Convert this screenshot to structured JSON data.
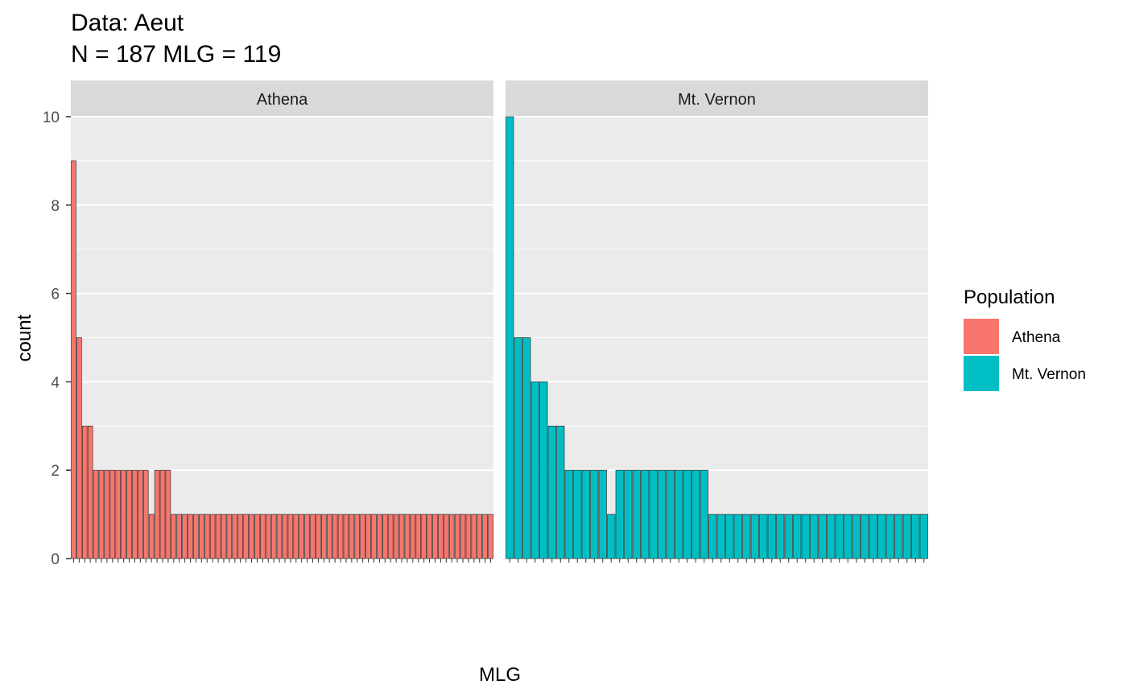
{
  "chart_data": {
    "type": "bar",
    "title": "Data: Aeut",
    "subtitle": "N = 187 MLG = 119",
    "xlabel": "MLG",
    "ylabel": "count",
    "ylim": [
      0,
      10
    ],
    "yticks": [
      "0",
      "2",
      "4",
      "6",
      "8",
      "10"
    ],
    "grid": true,
    "legend": {
      "title": "Population",
      "position": "right",
      "entries": [
        {
          "name": "Athena",
          "color": "#F8766D"
        },
        {
          "name": "Mt. Vernon",
          "color": "#00BFC4"
        }
      ]
    },
    "facets": [
      {
        "name": "Athena",
        "color": "#F8766D",
        "values": [
          9,
          5,
          3,
          3,
          2,
          2,
          2,
          2,
          2,
          2,
          2,
          2,
          2,
          2,
          1,
          2,
          2,
          2,
          1,
          1,
          1,
          1,
          1,
          1,
          1,
          1,
          1,
          1,
          1,
          1,
          1,
          1,
          1,
          1,
          1,
          1,
          1,
          1,
          1,
          1,
          1,
          1,
          1,
          1,
          1,
          1,
          1,
          1,
          1,
          1,
          1,
          1,
          1,
          1,
          1,
          1,
          1,
          1,
          1,
          1,
          1,
          1,
          1,
          1,
          1,
          1,
          1,
          1,
          1,
          1,
          1,
          1,
          1,
          1,
          1,
          1
        ]
      },
      {
        "name": "Mt. Vernon",
        "color": "#00BFC4",
        "values": [
          10,
          5,
          5,
          4,
          4,
          3,
          3,
          2,
          2,
          2,
          2,
          2,
          1,
          2,
          2,
          2,
          2,
          2,
          2,
          2,
          2,
          2,
          2,
          2,
          1,
          1,
          1,
          1,
          1,
          1,
          1,
          1,
          1,
          1,
          1,
          1,
          1,
          1,
          1,
          1,
          1,
          1,
          1,
          1,
          1,
          1,
          1,
          1,
          1,
          1
        ]
      }
    ]
  }
}
